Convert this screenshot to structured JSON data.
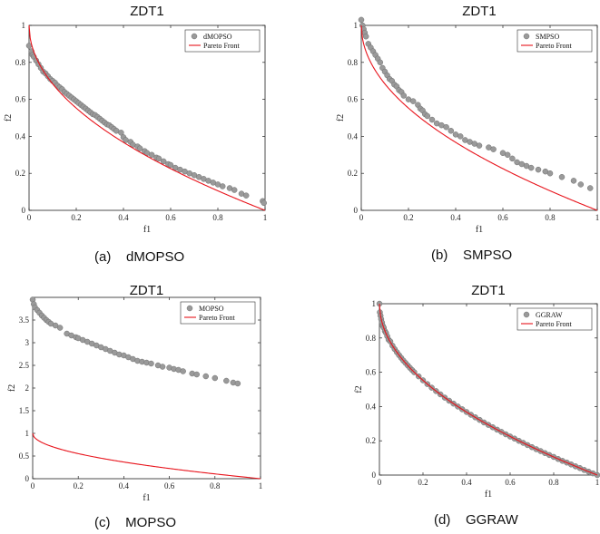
{
  "chart_data": [
    {
      "type": "scatter",
      "title": "ZDT1",
      "xlabel": "f1",
      "ylabel": "f2",
      "xlim": [
        0,
        1
      ],
      "ylim": [
        0,
        1
      ],
      "xticks": [
        "0",
        "0.2",
        "0.4",
        "0.6",
        "0.8",
        "1"
      ],
      "yticks": [
        "0",
        "0.2",
        "0.4",
        "0.6",
        "0.8",
        "1"
      ],
      "legend": [
        "dMOPSO",
        "Pareto Front"
      ],
      "legend_position": "top-right",
      "caption": "(a)    dMOPSO",
      "series": [
        {
          "name": "dMOPSO",
          "kind": "points",
          "color": "#9a9a9a",
          "points": [
            [
              0.0,
              0.89
            ],
            [
              0.01,
              0.86
            ],
            [
              0.015,
              0.84
            ],
            [
              0.02,
              0.83
            ],
            [
              0.03,
              0.81
            ],
            [
              0.04,
              0.79
            ],
            [
              0.05,
              0.77
            ],
            [
              0.06,
              0.75
            ],
            [
              0.07,
              0.74
            ],
            [
              0.08,
              0.725
            ],
            [
              0.09,
              0.71
            ],
            [
              0.1,
              0.7
            ],
            [
              0.11,
              0.69
            ],
            [
              0.12,
              0.675
            ],
            [
              0.13,
              0.665
            ],
            [
              0.14,
              0.655
            ],
            [
              0.15,
              0.64
            ],
            [
              0.16,
              0.63
            ],
            [
              0.17,
              0.62
            ],
            [
              0.18,
              0.61
            ],
            [
              0.19,
              0.6
            ],
            [
              0.2,
              0.59
            ],
            [
              0.21,
              0.58
            ],
            [
              0.22,
              0.57
            ],
            [
              0.23,
              0.56
            ],
            [
              0.24,
              0.55
            ],
            [
              0.25,
              0.54
            ],
            [
              0.26,
              0.53
            ],
            [
              0.27,
              0.52
            ],
            [
              0.28,
              0.515
            ],
            [
              0.29,
              0.505
            ],
            [
              0.3,
              0.495
            ],
            [
              0.31,
              0.485
            ],
            [
              0.32,
              0.475
            ],
            [
              0.33,
              0.465
            ],
            [
              0.34,
              0.46
            ],
            [
              0.35,
              0.45
            ],
            [
              0.36,
              0.44
            ],
            [
              0.37,
              0.43
            ],
            [
              0.39,
              0.42
            ],
            [
              0.4,
              0.395
            ],
            [
              0.41,
              0.38
            ],
            [
              0.43,
              0.37
            ],
            [
              0.44,
              0.355
            ],
            [
              0.46,
              0.345
            ],
            [
              0.47,
              0.335
            ],
            [
              0.49,
              0.32
            ],
            [
              0.5,
              0.31
            ],
            [
              0.52,
              0.3
            ],
            [
              0.54,
              0.285
            ],
            [
              0.55,
              0.28
            ],
            [
              0.57,
              0.265
            ],
            [
              0.59,
              0.25
            ],
            [
              0.6,
              0.245
            ],
            [
              0.62,
              0.23
            ],
            [
              0.64,
              0.22
            ],
            [
              0.66,
              0.21
            ],
            [
              0.68,
              0.2
            ],
            [
              0.7,
              0.19
            ],
            [
              0.72,
              0.18
            ],
            [
              0.74,
              0.17
            ],
            [
              0.76,
              0.16
            ],
            [
              0.78,
              0.15
            ],
            [
              0.8,
              0.14
            ],
            [
              0.82,
              0.13
            ],
            [
              0.85,
              0.12
            ],
            [
              0.87,
              0.11
            ],
            [
              0.9,
              0.09
            ],
            [
              0.92,
              0.08
            ],
            [
              0.99,
              0.05
            ],
            [
              0.995,
              0.04
            ]
          ]
        },
        {
          "name": "Pareto Front",
          "kind": "line",
          "color": "#e8141c",
          "func": "zdt1",
          "scale": 1
        }
      ]
    },
    {
      "type": "scatter",
      "title": "ZDT1",
      "xlabel": "f1",
      "ylabel": "f2",
      "xlim": [
        0,
        1
      ],
      "ylim": [
        0,
        1
      ],
      "xticks": [
        "0",
        "0.2",
        "0.4",
        "0.6",
        "0.8",
        "1"
      ],
      "yticks": [
        "0",
        "0.2",
        "0.4",
        "0.6",
        "0.8",
        "1"
      ],
      "legend": [
        "SMPSO",
        "Pareto Front"
      ],
      "legend_position": "top-right",
      "caption": "(b)    SMPSO",
      "series": [
        {
          "name": "SMPSO",
          "kind": "points",
          "color": "#9a9a9a",
          "points": [
            [
              0.0,
              1.03
            ],
            [
              0.005,
              1.0
            ],
            [
              0.01,
              0.98
            ],
            [
              0.015,
              0.96
            ],
            [
              0.02,
              0.94
            ],
            [
              0.03,
              0.9
            ],
            [
              0.04,
              0.88
            ],
            [
              0.05,
              0.86
            ],
            [
              0.06,
              0.84
            ],
            [
              0.07,
              0.82
            ],
            [
              0.08,
              0.8
            ],
            [
              0.09,
              0.77
            ],
            [
              0.1,
              0.75
            ],
            [
              0.11,
              0.73
            ],
            [
              0.12,
              0.71
            ],
            [
              0.13,
              0.7
            ],
            [
              0.14,
              0.68
            ],
            [
              0.15,
              0.67
            ],
            [
              0.16,
              0.65
            ],
            [
              0.17,
              0.64
            ],
            [
              0.18,
              0.62
            ],
            [
              0.2,
              0.6
            ],
            [
              0.22,
              0.59
            ],
            [
              0.24,
              0.57
            ],
            [
              0.25,
              0.55
            ],
            [
              0.26,
              0.54
            ],
            [
              0.27,
              0.52
            ],
            [
              0.28,
              0.51
            ],
            [
              0.3,
              0.49
            ],
            [
              0.32,
              0.47
            ],
            [
              0.34,
              0.46
            ],
            [
              0.36,
              0.45
            ],
            [
              0.38,
              0.43
            ],
            [
              0.4,
              0.41
            ],
            [
              0.42,
              0.4
            ],
            [
              0.44,
              0.38
            ],
            [
              0.46,
              0.37
            ],
            [
              0.48,
              0.36
            ],
            [
              0.5,
              0.35
            ],
            [
              0.54,
              0.34
            ],
            [
              0.56,
              0.33
            ],
            [
              0.6,
              0.31
            ],
            [
              0.62,
              0.3
            ],
            [
              0.64,
              0.28
            ],
            [
              0.66,
              0.26
            ],
            [
              0.68,
              0.25
            ],
            [
              0.7,
              0.24
            ],
            [
              0.72,
              0.23
            ],
            [
              0.75,
              0.22
            ],
            [
              0.78,
              0.21
            ],
            [
              0.8,
              0.2
            ],
            [
              0.85,
              0.18
            ],
            [
              0.9,
              0.16
            ],
            [
              0.93,
              0.14
            ],
            [
              0.97,
              0.12
            ]
          ]
        },
        {
          "name": "Pareto Front",
          "kind": "line",
          "color": "#e8141c",
          "func": "zdt1",
          "scale": 1
        }
      ]
    },
    {
      "type": "scatter",
      "title": "ZDT1",
      "xlabel": "f1",
      "ylabel": "f2",
      "xlim": [
        0,
        1
      ],
      "ylim": [
        0,
        4
      ],
      "xticks": [
        "0",
        "0.2",
        "0.4",
        "0.6",
        "0.8",
        "1"
      ],
      "yticks": [
        "0",
        "0.5",
        "1",
        "1.5",
        "2",
        "2.5",
        "3",
        "3.5"
      ],
      "legend": [
        "MOPSO",
        "Pareto Front"
      ],
      "legend_position": "top-right",
      "caption": "(c)    MOPSO",
      "series": [
        {
          "name": "MOPSO",
          "kind": "points",
          "color": "#9a9a9a",
          "points": [
            [
              0.0,
              3.95
            ],
            [
              0.005,
              3.85
            ],
            [
              0.01,
              3.78
            ],
            [
              0.02,
              3.72
            ],
            [
              0.03,
              3.66
            ],
            [
              0.04,
              3.6
            ],
            [
              0.05,
              3.55
            ],
            [
              0.06,
              3.5
            ],
            [
              0.07,
              3.46
            ],
            [
              0.08,
              3.42
            ],
            [
              0.1,
              3.38
            ],
            [
              0.12,
              3.33
            ],
            [
              0.15,
              3.2
            ],
            [
              0.17,
              3.16
            ],
            [
              0.19,
              3.12
            ],
            [
              0.2,
              3.1
            ],
            [
              0.22,
              3.06
            ],
            [
              0.24,
              3.02
            ],
            [
              0.26,
              2.98
            ],
            [
              0.28,
              2.94
            ],
            [
              0.3,
              2.9
            ],
            [
              0.32,
              2.86
            ],
            [
              0.34,
              2.82
            ],
            [
              0.36,
              2.78
            ],
            [
              0.38,
              2.74
            ],
            [
              0.4,
              2.72
            ],
            [
              0.42,
              2.68
            ],
            [
              0.44,
              2.64
            ],
            [
              0.46,
              2.6
            ],
            [
              0.48,
              2.58
            ],
            [
              0.5,
              2.56
            ],
            [
              0.52,
              2.54
            ],
            [
              0.55,
              2.5
            ],
            [
              0.57,
              2.47
            ],
            [
              0.6,
              2.45
            ],
            [
              0.62,
              2.42
            ],
            [
              0.64,
              2.4
            ],
            [
              0.66,
              2.37
            ],
            [
              0.7,
              2.32
            ],
            [
              0.72,
              2.3
            ],
            [
              0.76,
              2.26
            ],
            [
              0.8,
              2.22
            ],
            [
              0.85,
              2.16
            ],
            [
              0.88,
              2.12
            ],
            [
              0.9,
              2.1
            ]
          ]
        },
        {
          "name": "Pareto Front",
          "kind": "line",
          "color": "#e8141c",
          "func": "zdt1",
          "scale": 1
        }
      ]
    },
    {
      "type": "scatter",
      "title": "ZDT1",
      "xlabel": "f1",
      "ylabel": "f2",
      "xlim": [
        0,
        1
      ],
      "ylim": [
        0,
        1
      ],
      "xticks": [
        "0",
        "0.2",
        "0.4",
        "0.6",
        "0.8",
        "1"
      ],
      "yticks": [
        "0",
        "0.2",
        "0.4",
        "0.6",
        "0.8",
        "1"
      ],
      "legend": [
        "GGRAW",
        "Pareto Front"
      ],
      "legend_position": "top-right",
      "caption": "(d)    GGRAW",
      "series": [
        {
          "name": "GGRAW",
          "kind": "points",
          "color": "#9a9a9a",
          "points": [
            [
              0.0,
              1.0
            ],
            [
              0.002,
              0.95
            ],
            [
              0.005,
              0.93
            ],
            [
              0.008,
              0.91
            ],
            [
              0.012,
              0.89
            ],
            [
              0.016,
              0.87
            ],
            [
              0.02,
              0.86
            ],
            [
              0.025,
              0.84
            ],
            [
              0.03,
              0.83
            ],
            [
              0.036,
              0.81
            ],
            [
              0.042,
              0.79
            ],
            [
              0.05,
              0.78
            ],
            [
              0.06,
              0.755
            ],
            [
              0.07,
              0.735
            ],
            [
              0.08,
              0.717
            ],
            [
              0.09,
              0.7
            ],
            [
              0.1,
              0.684
            ],
            [
              0.11,
              0.668
            ],
            [
              0.12,
              0.654
            ],
            [
              0.13,
              0.64
            ],
            [
              0.14,
              0.626
            ],
            [
              0.15,
              0.613
            ],
            [
              0.16,
              0.6
            ],
            [
              0.18,
              0.576
            ],
            [
              0.2,
              0.553
            ],
            [
              0.22,
              0.531
            ],
            [
              0.24,
              0.51
            ],
            [
              0.26,
              0.49
            ],
            [
              0.28,
              0.471
            ],
            [
              0.3,
              0.452
            ],
            [
              0.32,
              0.434
            ],
            [
              0.34,
              0.417
            ],
            [
              0.36,
              0.4
            ],
            [
              0.38,
              0.384
            ],
            [
              0.4,
              0.368
            ],
            [
              0.42,
              0.352
            ],
            [
              0.44,
              0.337
            ],
            [
              0.46,
              0.322
            ],
            [
              0.48,
              0.307
            ],
            [
              0.5,
              0.293
            ],
            [
              0.52,
              0.279
            ],
            [
              0.54,
              0.265
            ],
            [
              0.56,
              0.252
            ],
            [
              0.58,
              0.238
            ],
            [
              0.6,
              0.225
            ],
            [
              0.62,
              0.213
            ],
            [
              0.64,
              0.2
            ],
            [
              0.66,
              0.188
            ],
            [
              0.68,
              0.175
            ],
            [
              0.7,
              0.163
            ],
            [
              0.72,
              0.151
            ],
            [
              0.74,
              0.14
            ],
            [
              0.76,
              0.128
            ],
            [
              0.78,
              0.117
            ],
            [
              0.8,
              0.106
            ],
            [
              0.82,
              0.094
            ],
            [
              0.84,
              0.083
            ],
            [
              0.86,
              0.073
            ],
            [
              0.88,
              0.062
            ],
            [
              0.9,
              0.051
            ],
            [
              0.92,
              0.041
            ],
            [
              0.94,
              0.03
            ],
            [
              0.96,
              0.02
            ],
            [
              0.98,
              0.01
            ],
            [
              1.0,
              0.0
            ]
          ]
        },
        {
          "name": "Pareto Front",
          "kind": "line",
          "color": "#e8141c",
          "func": "zdt1",
          "scale": 1
        }
      ]
    }
  ]
}
